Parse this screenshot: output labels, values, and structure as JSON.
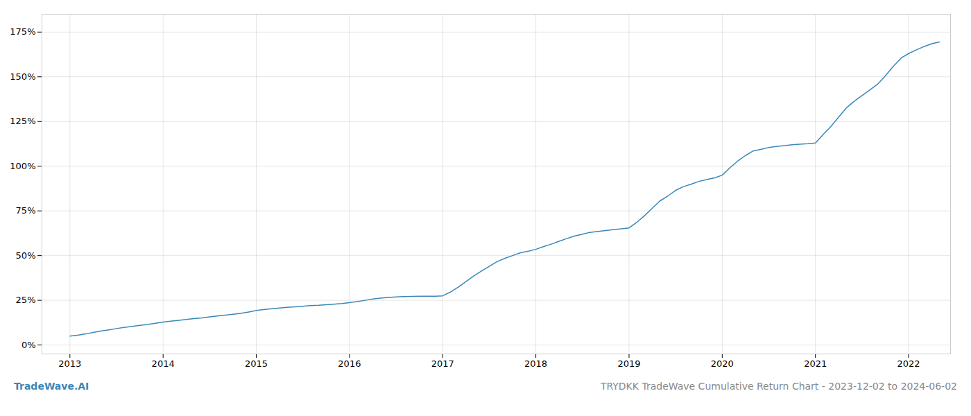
{
  "chart_data": {
    "type": "line",
    "title": "TRYDKK TradeWave Cumulative Return Chart - 2023-12-02 to 2024-06-02",
    "annotations": [
      {
        "text": "TradeWave.AI",
        "color": "#3a87b8"
      }
    ],
    "color": "#3a87b8",
    "grid": true,
    "x": [
      2013.0,
      2013.08,
      2013.17,
      2013.25,
      2013.33,
      2013.42,
      2013.5,
      2013.58,
      2013.67,
      2013.75,
      2013.83,
      2013.92,
      2014.0,
      2014.08,
      2014.17,
      2014.25,
      2014.33,
      2014.42,
      2014.5,
      2014.58,
      2014.67,
      2014.75,
      2014.83,
      2014.92,
      2015.0,
      2015.08,
      2015.17,
      2015.25,
      2015.33,
      2015.42,
      2015.5,
      2015.58,
      2015.67,
      2015.75,
      2015.83,
      2015.92,
      2016.0,
      2016.08,
      2016.17,
      2016.25,
      2016.33,
      2016.42,
      2016.5,
      2016.58,
      2016.67,
      2016.75,
      2016.83,
      2016.92,
      2017.0,
      2017.08,
      2017.17,
      2017.25,
      2017.33,
      2017.42,
      2017.5,
      2017.58,
      2017.67,
      2017.75,
      2017.83,
      2017.92,
      2018.0,
      2018.08,
      2018.17,
      2018.25,
      2018.33,
      2018.42,
      2018.5,
      2018.58,
      2018.67,
      2018.75,
      2018.83,
      2018.92,
      2019.0,
      2019.08,
      2019.17,
      2019.25,
      2019.33,
      2019.42,
      2019.5,
      2019.58,
      2019.67,
      2019.75,
      2019.83,
      2019.92,
      2020.0,
      2020.08,
      2020.17,
      2020.25,
      2020.33,
      2020.42,
      2020.5,
      2020.58,
      2020.67,
      2020.75,
      2020.83,
      2020.92,
      2021.0,
      2021.08,
      2021.17,
      2021.25,
      2021.33,
      2021.42,
      2021.5,
      2021.58,
      2021.67,
      2021.75,
      2021.83,
      2021.92,
      2022.0,
      2022.08,
      2022.17,
      2022.25,
      2022.33
    ],
    "values": [
      5.0,
      5.5,
      6.2,
      7.0,
      7.8,
      8.5,
      9.2,
      9.8,
      10.4,
      11.0,
      11.5,
      12.2,
      12.8,
      13.3,
      13.8,
      14.3,
      14.8,
      15.2,
      15.7,
      16.2,
      16.7,
      17.2,
      17.7,
      18.5,
      19.3,
      19.8,
      20.3,
      20.7,
      21.1,
      21.4,
      21.7,
      22.0,
      22.2,
      22.5,
      22.8,
      23.2,
      23.7,
      24.3,
      25.0,
      25.7,
      26.2,
      26.6,
      26.9,
      27.1,
      27.2,
      27.3,
      27.3,
      27.3,
      27.5,
      29.5,
      32.5,
      35.5,
      38.5,
      41.5,
      44.0,
      46.5,
      48.5,
      50.0,
      51.5,
      52.5,
      53.5,
      55.0,
      56.5,
      58.0,
      59.5,
      61.0,
      62.0,
      63.0,
      63.5,
      64.0,
      64.5,
      65.0,
      65.5,
      68.5,
      72.5,
      76.5,
      80.5,
      83.5,
      86.5,
      88.5,
      90.0,
      91.5,
      92.5,
      93.5,
      95.0,
      99.0,
      103.0,
      106.0,
      108.5,
      109.5,
      110.5,
      111.0,
      111.5,
      112.0,
      112.3,
      112.6,
      113.0,
      117.5,
      122.5,
      127.5,
      132.5,
      136.5,
      139.5,
      142.5,
      146.0,
      150.5,
      155.5,
      160.5,
      163.0,
      165.0,
      167.0,
      168.5,
      169.5
    ],
    "xlim": [
      2012.7,
      2022.45
    ],
    "xticks": [
      2013,
      2014,
      2015,
      2016,
      2017,
      2018,
      2019,
      2020,
      2021,
      2022
    ],
    "ylim": [
      -5,
      185
    ],
    "yticks": [
      {
        "value": 0,
        "label": "0%"
      },
      {
        "value": 25,
        "label": "25%"
      },
      {
        "value": 50,
        "label": "50%"
      },
      {
        "value": 75,
        "label": "75%"
      },
      {
        "value": 100,
        "label": "100%"
      },
      {
        "value": 125,
        "label": "125%"
      },
      {
        "value": 150,
        "label": "150%"
      },
      {
        "value": 175,
        "label": "175%"
      }
    ]
  }
}
